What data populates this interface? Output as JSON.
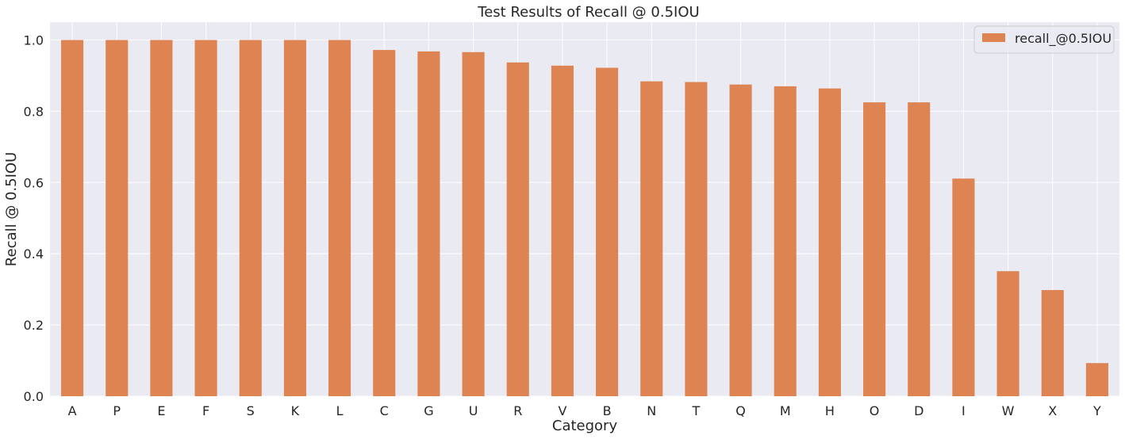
{
  "chart_data": {
    "type": "bar",
    "title": "Test Results of Recall @ 0.5IOU",
    "xlabel": "Category",
    "ylabel": "Recall @ 0.5IOU",
    "ylim": [
      0,
      1.05
    ],
    "yticks": [
      "0.0",
      "0.2",
      "0.4",
      "0.6",
      "0.8",
      "1.0"
    ],
    "grid": true,
    "legend": "top-right",
    "categories": [
      "A",
      "P",
      "E",
      "F",
      "S",
      "K",
      "L",
      "C",
      "G",
      "U",
      "R",
      "V",
      "B",
      "N",
      "T",
      "Q",
      "M",
      "H",
      "O",
      "D",
      "I",
      "W",
      "X",
      "Y"
    ],
    "series": [
      {
        "name": "recall_@0.5IOU",
        "color": "#dd8452",
        "values": [
          1.0,
          1.0,
          1.0,
          1.0,
          1.0,
          1.0,
          1.0,
          0.972,
          0.968,
          0.966,
          0.937,
          0.928,
          0.922,
          0.884,
          0.882,
          0.875,
          0.87,
          0.864,
          0.825,
          0.825,
          0.611,
          0.351,
          0.298,
          0.093
        ]
      }
    ],
    "background_color": "#eaeaf2",
    "grid_color": "#ffffff"
  }
}
